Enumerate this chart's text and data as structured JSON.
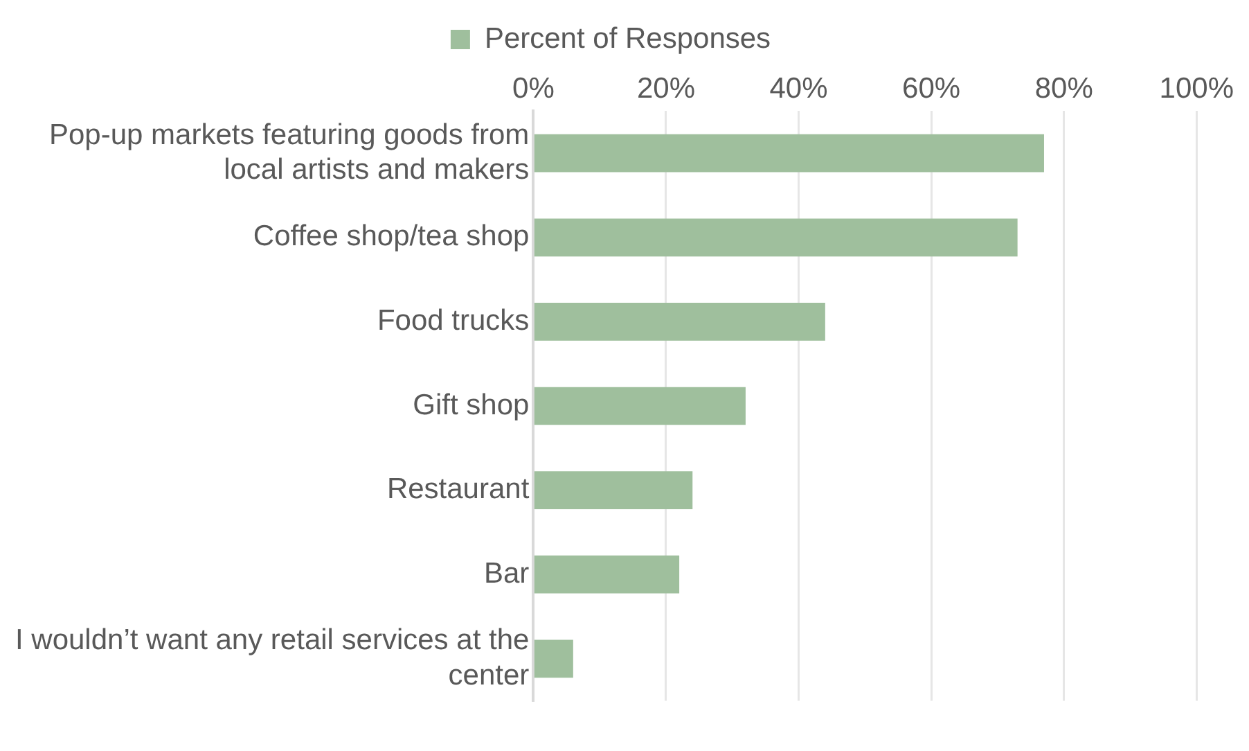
{
  "chart_data": {
    "type": "bar",
    "orientation": "horizontal",
    "categories": [
      "Pop-up markets featuring goods from local artists and makers",
      "Coffee shop/tea shop",
      "Food trucks",
      "Gift shop",
      "Restaurant",
      "Bar",
      "I wouldn’t want any retail services at the center"
    ],
    "series": [
      {
        "name": "Percent of Responses",
        "color": "#9fbf9d",
        "values": [
          77,
          73,
          44,
          32,
          24,
          22,
          6
        ]
      }
    ],
    "xlim": [
      0,
      100
    ],
    "xticks": [
      {
        "value": 0,
        "label": "0%"
      },
      {
        "value": 20,
        "label": "20%"
      },
      {
        "value": 40,
        "label": "40%"
      },
      {
        "value": 60,
        "label": "60%"
      },
      {
        "value": 80,
        "label": "80%"
      },
      {
        "value": 100,
        "label": "100%"
      }
    ],
    "grid": "x",
    "legend": "top"
  }
}
